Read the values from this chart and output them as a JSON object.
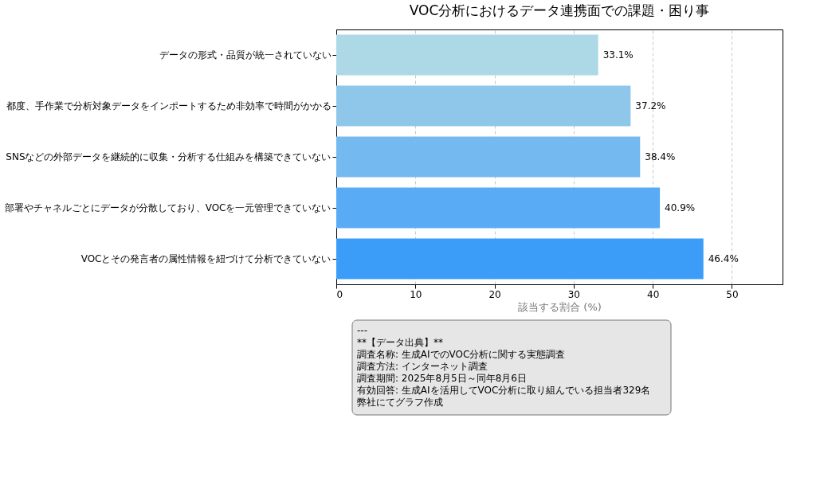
{
  "chart_data": {
    "type": "bar",
    "orientation": "horizontal",
    "title": "VOC分析におけるデータ連携面での課題・困り事",
    "xlabel": "該当する割合 (%)",
    "categories": [
      "データの形式・品質が統一されていない",
      "都度、手作業で分析対象データをインポートするため非効率で時間がかかる",
      "SNSなどの外部データを継続的に収集・分析する仕組みを構築できていない",
      "部署やチャネルごとにデータが分散しており、VOCを一元管理できていない",
      "VOCとその発言者の属性情報を紐づけて分析できていない"
    ],
    "values": [
      33.1,
      37.2,
      38.4,
      40.9,
      46.4
    ],
    "colors": [
      "#add8e6",
      "#8fc7ea",
      "#74b9ef",
      "#58abf4",
      "#3c9df8"
    ],
    "value_labels": [
      "33.1%",
      "37.2%",
      "38.4%",
      "40.9%",
      "46.4%"
    ],
    "xlim": [
      0,
      56.4
    ],
    "xticks": [
      0,
      10,
      20,
      30,
      40,
      50
    ],
    "grid": "x",
    "annotations": [
      "---",
      "**【データ出典】**",
      "調査名称: 生成AIでのVOC分析に関する実態調査",
      "調査方法: インターネット調査",
      "調査期間: 2025年8月5日～同年8月6日",
      "有効回答: 生成AIを活用してVOC分析に取り組んでいる担当者329名",
      "弊社にてグラフ作成"
    ]
  }
}
